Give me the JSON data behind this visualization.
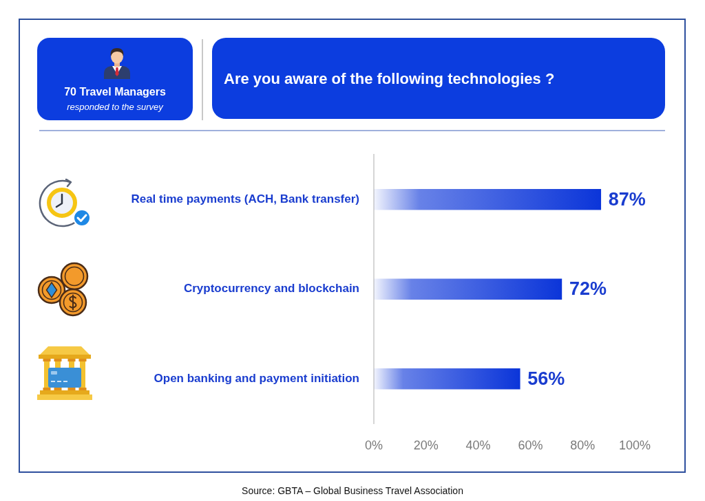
{
  "chart_data": {
    "type": "bar",
    "orientation": "horizontal",
    "title": "Are you aware of the following technologies ?",
    "categories": [
      "Real time payments (ACH, Bank transfer)",
      "Cryptocurrency and blockchain",
      "Open banking and payment initiation"
    ],
    "values": [
      87,
      72,
      56
    ],
    "color": "#0b35d9",
    "value_labels": [
      "87%",
      "72%",
      "56%"
    ],
    "xlim": [
      0,
      100
    ],
    "xticks": [
      {
        "value": 0,
        "label": "0%"
      },
      {
        "value": 20,
        "label": "20%"
      },
      {
        "value": 40,
        "label": "40%"
      },
      {
        "value": 60,
        "label": "60%"
      },
      {
        "value": 80,
        "label": "80%"
      },
      {
        "value": 100,
        "label": "100%"
      }
    ],
    "annotations": [
      "70 Travel Managers",
      "responded to the survey",
      "Source: GBTA – Global Business Travel Association"
    ]
  }
}
